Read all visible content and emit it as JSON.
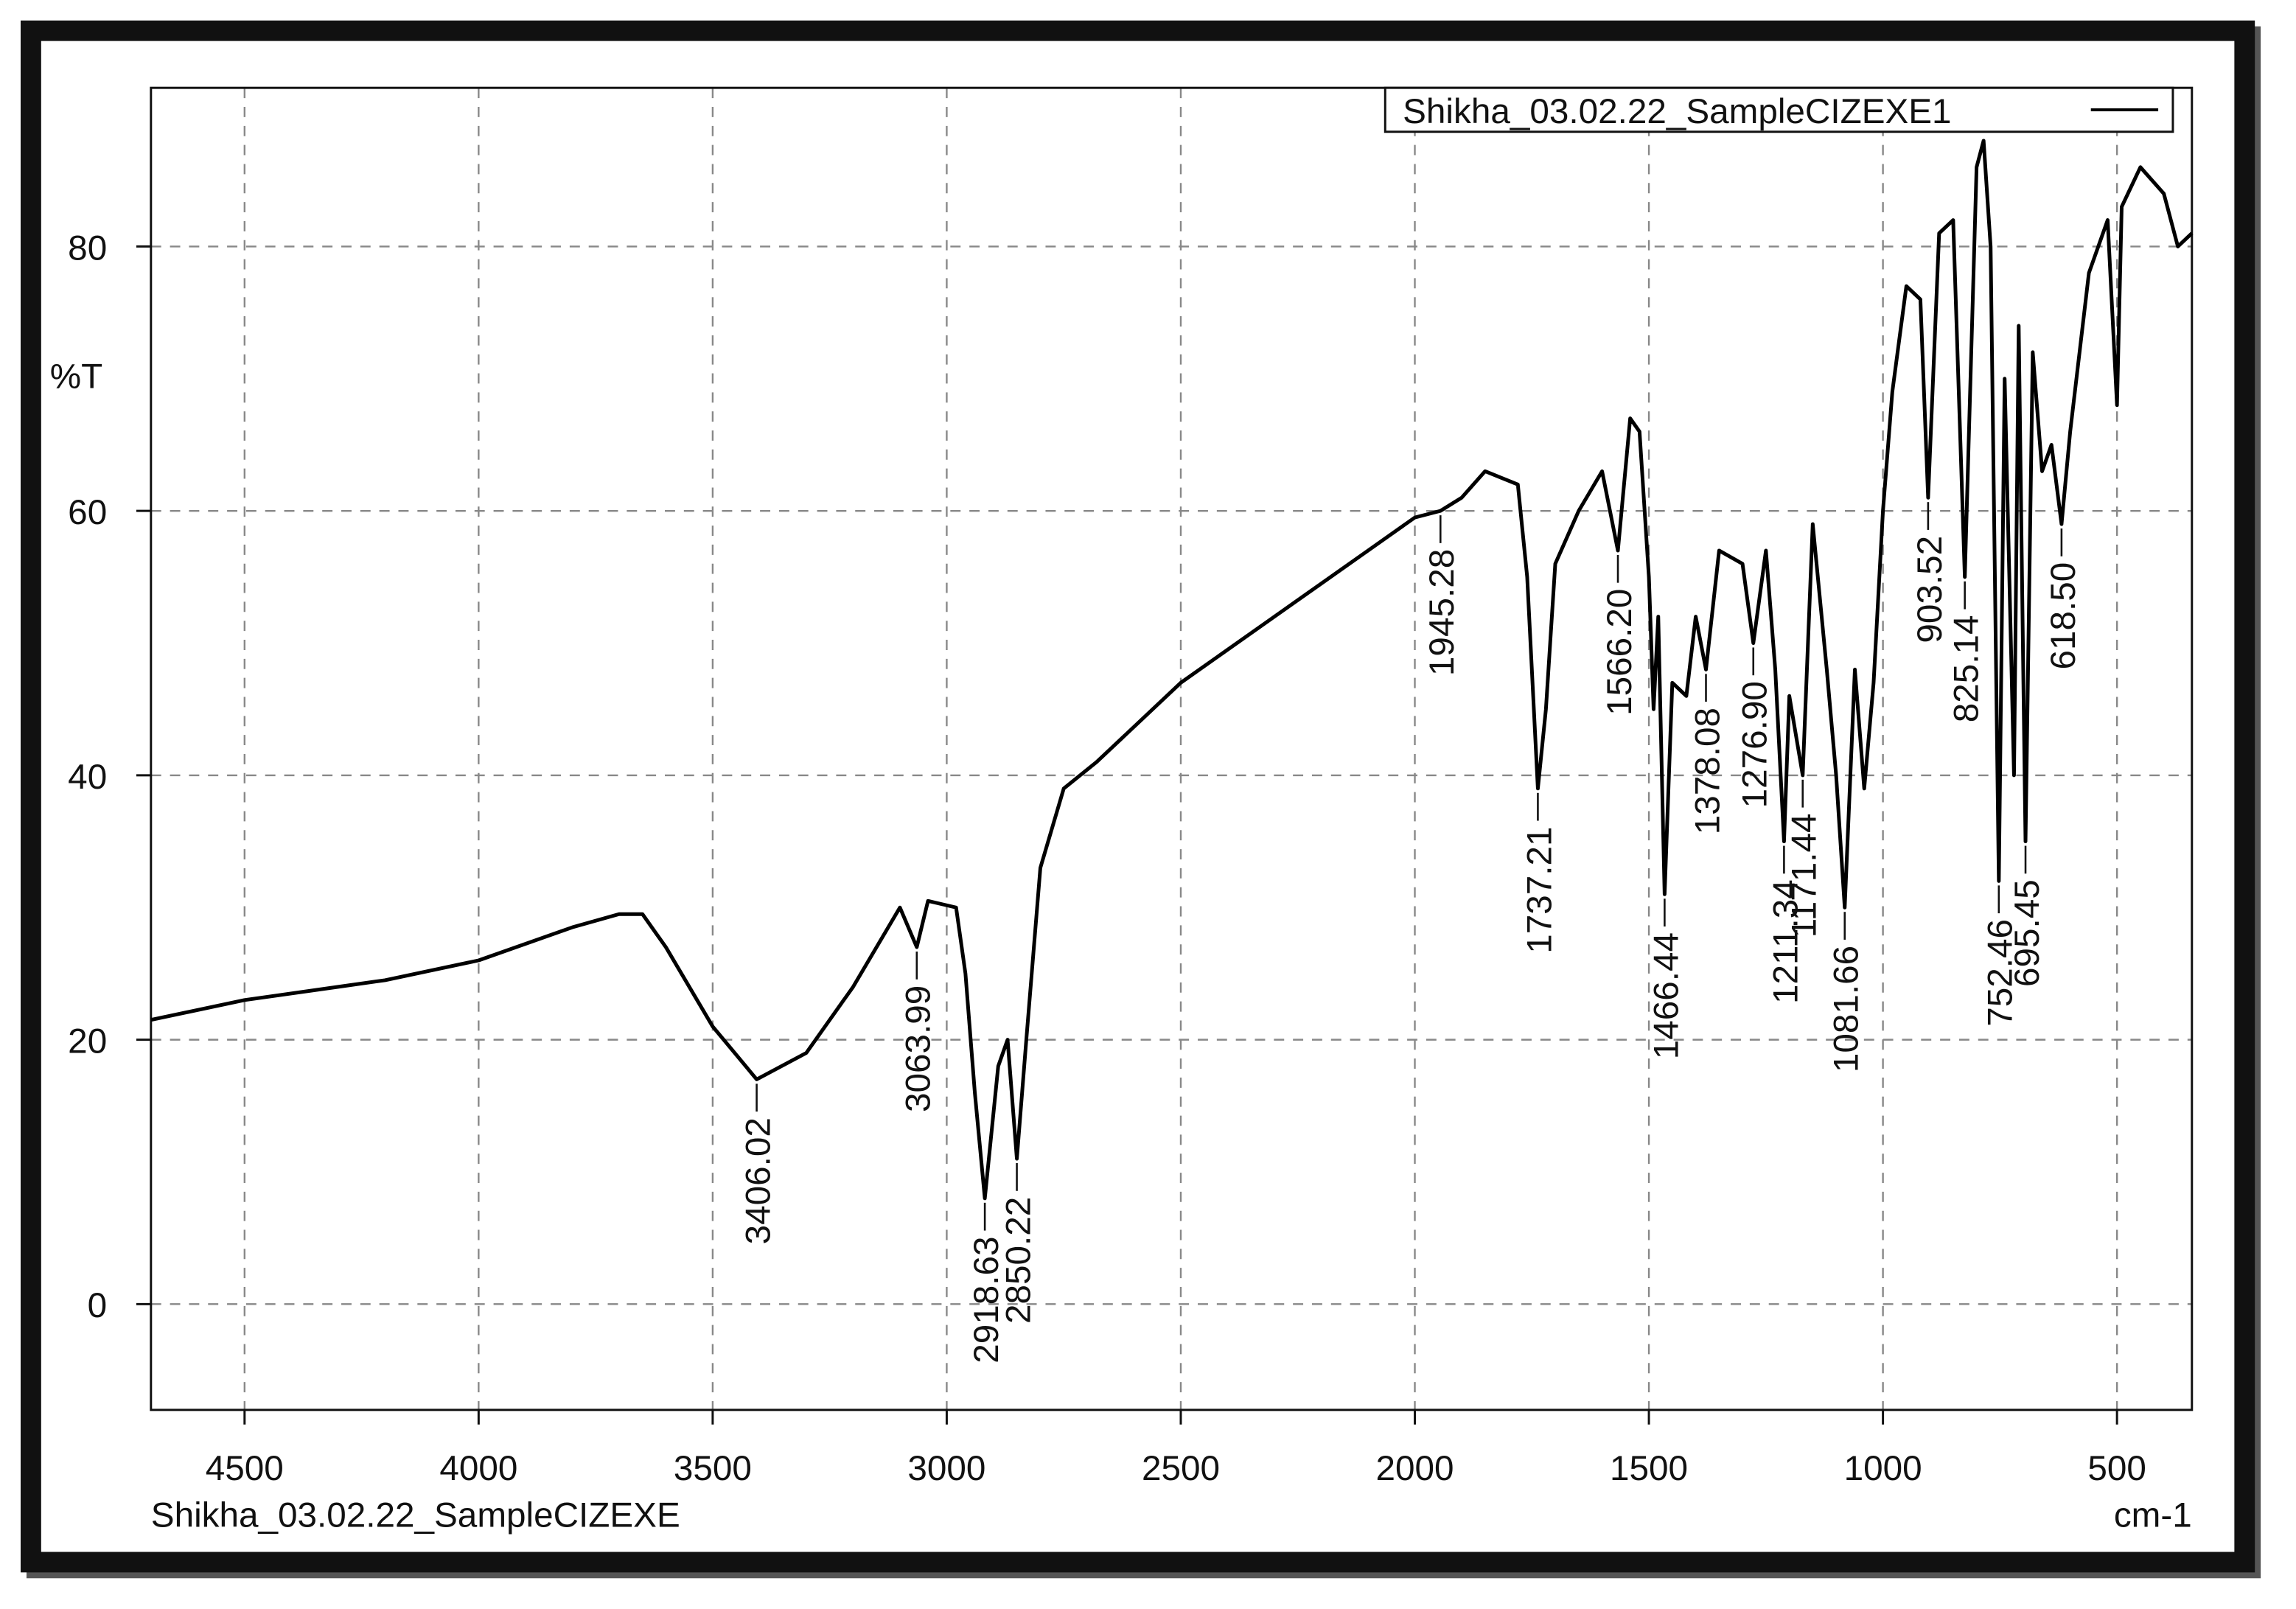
{
  "chart_data": {
    "type": "line",
    "x_label_unit": "cm-1",
    "y_label": "%T",
    "file_label": "Shikha_03.02.22_SampleCIZEXE",
    "xlim": [
      4700,
      340
    ],
    "ylim": [
      -8,
      92
    ],
    "xticks": [
      4500,
      4000,
      3500,
      3000,
      2500,
      2000,
      1500,
      1000,
      500
    ],
    "yticks": [
      0,
      20,
      40,
      60,
      80
    ],
    "grid": true,
    "legend": "top-right",
    "x": [
      4700,
      4500,
      4300,
      4200,
      4000,
      3800,
      3700,
      3650,
      3600,
      3500,
      3406.02,
      3300,
      3200,
      3100,
      3063.99,
      3040,
      2980,
      2960,
      2940,
      2918.63,
      2890,
      2870,
      2850.22,
      2830,
      2800,
      2750,
      2680,
      2500,
      2300,
      2100,
      2000,
      1945.28,
      1900,
      1850,
      1780,
      1760,
      1737.21,
      1720,
      1700,
      1650,
      1600,
      1566.2,
      1540,
      1520,
      1500,
      1490,
      1480,
      1466.44,
      1450,
      1420,
      1400,
      1378.08,
      1350,
      1300,
      1276.9,
      1250,
      1230,
      1211.34,
      1200,
      1171.44,
      1150,
      1120,
      1100,
      1081.66,
      1060,
      1040,
      1020,
      1000,
      980,
      950,
      920,
      903.52,
      880,
      850,
      825.14,
      800,
      785,
      770,
      752.46,
      740,
      720,
      710,
      695.45,
      680,
      660,
      640,
      618.5,
      600,
      560,
      520,
      500,
      490,
      450,
      400,
      370,
      340
    ],
    "series": [
      {
        "name": "Shikha_03.02.22_SampleCIZEXE1",
        "color": "#000000",
        "values": [
          21.5,
          23,
          24,
          24.5,
          26,
          28.5,
          29.5,
          29.5,
          27,
          21,
          17,
          19,
          24,
          30,
          27,
          30.5,
          30,
          25,
          16,
          8,
          18,
          20,
          11,
          20,
          33,
          39,
          41,
          47,
          52,
          57,
          59.5,
          60,
          61,
          63,
          62,
          55,
          39,
          45,
          56,
          60,
          63,
          57,
          67,
          66,
          55,
          45,
          52,
          31,
          47,
          46,
          52,
          48,
          57,
          56,
          50,
          57,
          48,
          35,
          46,
          40,
          59,
          48,
          40,
          30,
          48,
          39,
          47,
          60,
          69,
          77,
          76,
          61,
          81,
          82,
          55,
          86,
          88,
          80,
          32,
          70,
          40,
          74,
          35,
          72,
          63,
          65,
          59,
          66,
          78,
          82,
          68,
          83,
          86,
          84,
          80,
          81
        ]
      }
    ],
    "peaks": {
      "values": [
        3406.02,
        3063.99,
        2918.63,
        2850.22,
        1945.28,
        1737.21,
        1566.2,
        1466.44,
        1378.08,
        1276.9,
        1211.34,
        1171.44,
        1081.66,
        903.52,
        825.14,
        752.46,
        695.45,
        618.5
      ],
      "value_labels": [
        "3406.02",
        "3063.99",
        "2918.63",
        "2850.22",
        "1945.28",
        "1737.21",
        "1566.20",
        "1466.44",
        "1378.08",
        "1276.90",
        "1211.34",
        "1171.44",
        "1081.66",
        "903.52",
        "825.14",
        "752.46",
        "695.45",
        "618.50"
      ]
    }
  }
}
